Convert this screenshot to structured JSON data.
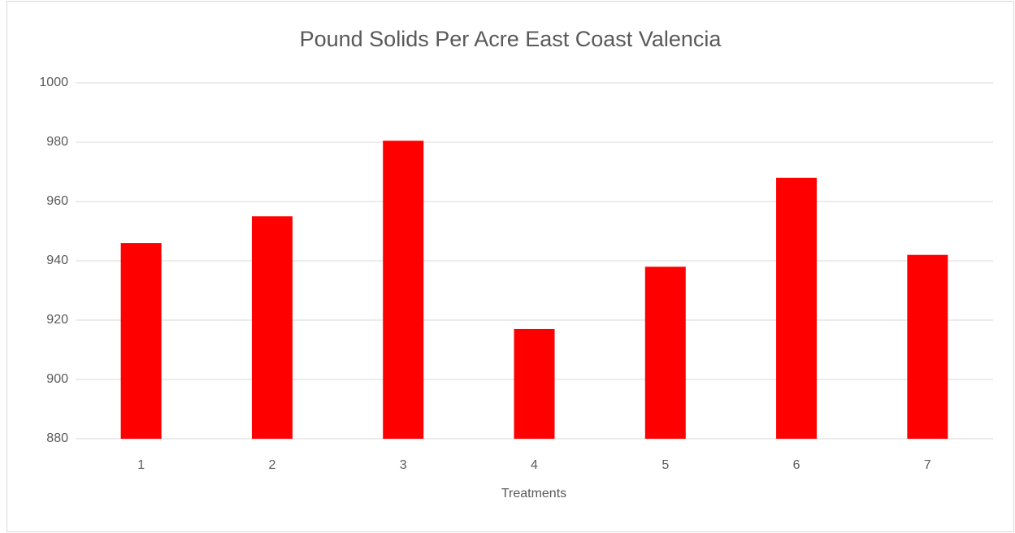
{
  "chart_data": {
    "type": "bar",
    "title": "Pound Solids Per Acre East Coast Valencia",
    "x_label": "Treatments",
    "categories": [
      "1",
      "2",
      "3",
      "4",
      "5",
      "6",
      "7"
    ],
    "values": [
      946,
      955,
      980.5,
      917,
      938,
      968,
      942
    ],
    "color": "#ff0000",
    "ylim": [
      880,
      1000
    ],
    "yticks": [
      880,
      900,
      920,
      940,
      960,
      980,
      1000
    ],
    "grid": true
  }
}
